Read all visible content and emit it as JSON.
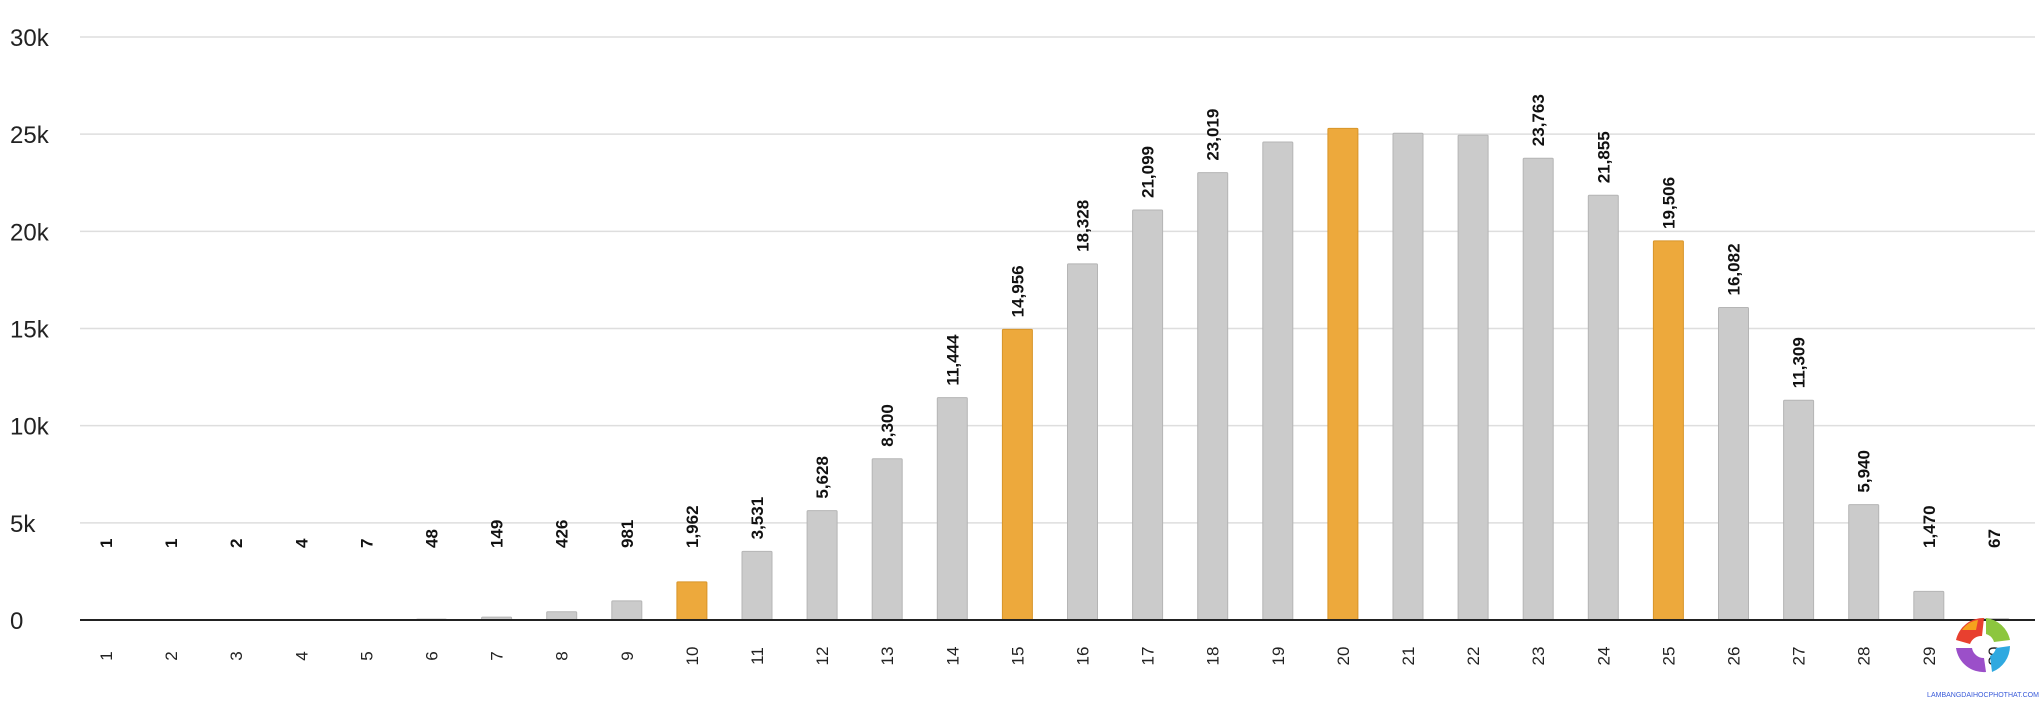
{
  "chart_data": {
    "type": "bar",
    "categories": [
      "1",
      "2",
      "3",
      "4",
      "5",
      "6",
      "7",
      "8",
      "9",
      "10",
      "11",
      "12",
      "13",
      "14",
      "15",
      "16",
      "17",
      "18",
      "19",
      "20",
      "21",
      "22",
      "23",
      "24",
      "25",
      "26",
      "27",
      "28",
      "29",
      "30"
    ],
    "values": [
      1,
      1,
      2,
      4,
      7,
      48,
      149,
      426,
      981,
      1962,
      3531,
      5628,
      8300,
      11444,
      14956,
      18328,
      21099,
      23019,
      24600,
      25300,
      25050,
      24950,
      23763,
      21855,
      19506,
      16082,
      11309,
      5940,
      1470,
      67
    ],
    "data_labels": [
      "1",
      "1",
      "2",
      "4",
      "7",
      "48",
      "149",
      "426",
      "981",
      "1,962",
      "3,531",
      "5,628",
      "8,300",
      "11,444",
      "14,956",
      "18,328",
      "21,099",
      "23,019",
      "",
      "",
      "",
      "",
      "23,763",
      "21,855",
      "19,506",
      "16,082",
      "11,309",
      "5,940",
      "1,470",
      "67"
    ],
    "highlighted_categories": [
      "10",
      "15",
      "20",
      "25"
    ],
    "y_ticks": [
      {
        "value": 0,
        "label": "0"
      },
      {
        "value": 5000,
        "label": "5k"
      },
      {
        "value": 10000,
        "label": "10k"
      },
      {
        "value": 15000,
        "label": "15k"
      },
      {
        "value": 20000,
        "label": "20k"
      },
      {
        "value": 25000,
        "label": "25k"
      },
      {
        "value": 30000,
        "label": "30k"
      }
    ],
    "ylim": [
      0,
      30000
    ],
    "title": "",
    "xlabel": "",
    "ylabel": "",
    "grid": true,
    "legend": "none",
    "colors": {
      "bar": "#cbcbcb",
      "bar_stroke": "#b5b5b5",
      "highlight": "#eda93c",
      "highlight_stroke": "#d8952a"
    }
  },
  "watermark": {
    "text": "LAMBANGDAIHOCPHOTHAT.COM"
  }
}
